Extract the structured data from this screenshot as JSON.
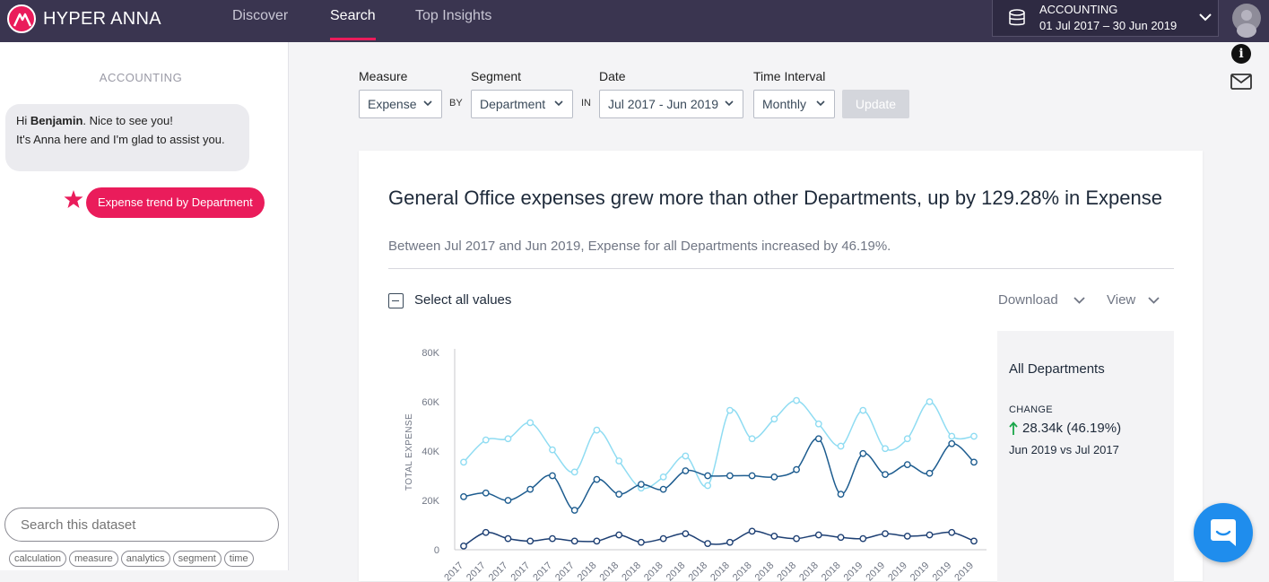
{
  "header": {
    "brand": "HYPER ANNA",
    "nav": [
      {
        "label": "Discover",
        "active": false
      },
      {
        "label": "Search",
        "active": true
      },
      {
        "label": "Top Insights",
        "active": false
      }
    ],
    "dataset": {
      "name": "ACCOUNTING",
      "range": "01 Jul 2017 – 30 Jun 2019"
    }
  },
  "sidebar": {
    "title": "ACCOUNTING",
    "greeting": {
      "prefix": "Hi ",
      "name": "Benjamin",
      "suffix": ". Nice to see you!",
      "line2": "It's Anna here and I'm glad to assist you."
    },
    "query": "Expense trend by Department",
    "search_placeholder": "Search this dataset",
    "tags": [
      "calculation",
      "measure",
      "analytics",
      "segment",
      "time"
    ]
  },
  "filters": {
    "measure": {
      "label": "Measure",
      "value": "Expense"
    },
    "by": "BY",
    "segment": {
      "label": "Segment",
      "value": "Department"
    },
    "in": "IN",
    "date": {
      "label": "Date",
      "value": "Jul 2017 - Jun 2019"
    },
    "interval": {
      "label": "Time Interval",
      "value": "Monthly"
    },
    "update": "Update"
  },
  "card": {
    "headline": "General Office expenses grew more than other Departments, up by 129.28% in Expense",
    "subline": "Between Jul 2017 and Jun 2019, Expense for all Departments increased by 46.19%.",
    "select_all": "Select all values",
    "download": "Download",
    "view": "View"
  },
  "side_panel": {
    "title": "All Departments",
    "change_label": "CHANGE",
    "change_value": "28.34k (46.19%)",
    "comparison": "Jun 2019 vs Jul 2017",
    "up_color": "#1aa64a"
  },
  "chart_data": {
    "type": "line",
    "ylabel": "TOTAL EXPENSE",
    "ylim": [
      0,
      80000
    ],
    "yticks": [
      0,
      20000,
      40000,
      60000,
      80000
    ],
    "ytick_labels": [
      "0",
      "20K",
      "40K",
      "60K",
      "80K"
    ],
    "categories": [
      "2017",
      "2017",
      "2017",
      "2017",
      "2017",
      "2017",
      "2018",
      "2018",
      "2018",
      "2018",
      "2018",
      "2018",
      "2018",
      "2018",
      "2018",
      "2018",
      "2018",
      "2018",
      "2019",
      "2019",
      "2019",
      "2019",
      "2019",
      "2019"
    ],
    "series": [
      {
        "color": "#8fdcf2",
        "values": [
          35500,
          44500,
          45000,
          51500,
          40500,
          31500,
          48500,
          36000,
          25000,
          29500,
          38000,
          26000,
          56500,
          45000,
          53000,
          60500,
          51000,
          42000,
          56500,
          41000,
          45000,
          60000,
          46000,
          46000
        ]
      },
      {
        "color": "#1d5c8f",
        "values": [
          21500,
          23000,
          20000,
          24500,
          30000,
          16000,
          28500,
          22500,
          26500,
          24500,
          32000,
          30000,
          30000,
          30000,
          29500,
          32500,
          45000,
          22500,
          39000,
          30500,
          34500,
          31000,
          43000,
          35500
        ]
      },
      {
        "color": "#1d3f73",
        "values": [
          1500,
          7000,
          4500,
          3500,
          4500,
          3500,
          3500,
          6000,
          3000,
          4500,
          6500,
          2500,
          3000,
          7500,
          5500,
          4500,
          6000,
          5000,
          4500,
          6500,
          5500,
          6000,
          7000,
          3500
        ]
      }
    ]
  }
}
